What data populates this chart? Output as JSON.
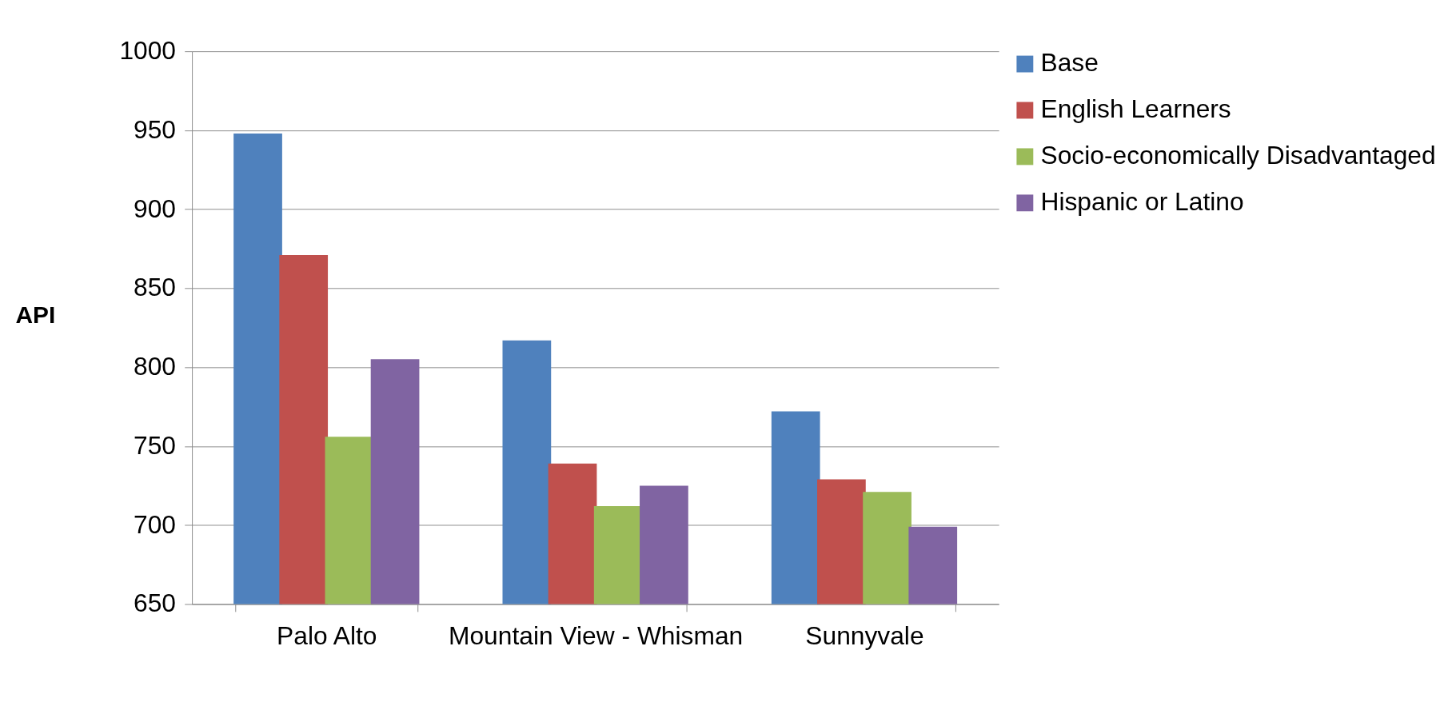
{
  "chart_data": {
    "type": "bar",
    "ylabel": "API",
    "categories": [
      "Palo Alto",
      "Mountain View - Whisman",
      "Sunnyvale"
    ],
    "series": [
      {
        "name": "Base",
        "color": "#4f81bd",
        "values": [
          948,
          817,
          772
        ]
      },
      {
        "name": "English Learners",
        "color": "#c0504d",
        "values": [
          871,
          739,
          729
        ]
      },
      {
        "name": "Socio-economically Disadvantaged",
        "color": "#9bbb59",
        "values": [
          756,
          712,
          721
        ]
      },
      {
        "name": "Hispanic or Latino",
        "color": "#8064a2",
        "values": [
          805,
          725,
          699
        ]
      }
    ],
    "ylim": [
      650,
      1000
    ],
    "yticks": [
      650,
      700,
      750,
      800,
      850,
      900,
      950,
      1000
    ],
    "grid": "y",
    "legend": "right"
  }
}
